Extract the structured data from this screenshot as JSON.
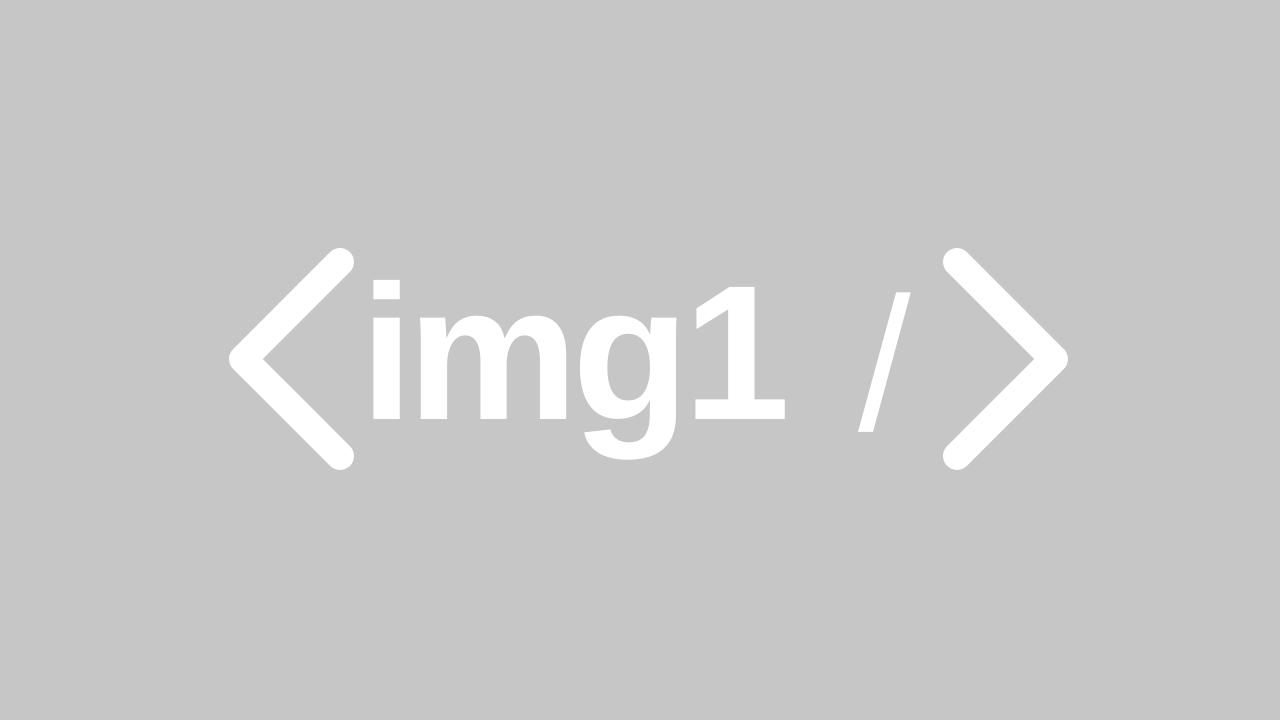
{
  "placeholder": {
    "text": "img1",
    "slash": "/",
    "background_color": "#c6c6c6",
    "foreground_color": "#ffffff",
    "left_icon": "angle-bracket-left-icon",
    "right_icon": "angle-bracket-right-icon"
  }
}
